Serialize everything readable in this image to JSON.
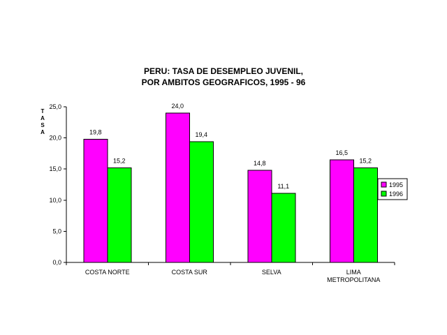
{
  "colors": {
    "series_1995": "#FF00FF",
    "series_1996": "#00FF00",
    "axis": "#000000",
    "background": "#FFFFFF"
  },
  "chart_data": {
    "type": "bar",
    "title_lines": [
      "PERU: TASA DE DESEMPLEO JUVENIL,",
      "POR AMBITOS GEOGRAFICOS, 1995 - 96"
    ],
    "ylabel": "TASA",
    "xlabel": "",
    "ylim": [
      0,
      25
    ],
    "yticks": [
      0,
      5,
      10,
      15,
      20,
      25
    ],
    "ytick_labels": [
      "0,0",
      "5,0",
      "10,0",
      "15,0",
      "20,0",
      "25,0"
    ],
    "grid": false,
    "legend_position": "right",
    "categories": [
      [
        "COSTA NORTE"
      ],
      [
        "COSTA SUR"
      ],
      [
        "SELVA"
      ],
      [
        "LIMA",
        "METROPOLITANA"
      ]
    ],
    "series": [
      {
        "name": "1995",
        "values": [
          19.8,
          24.0,
          14.8,
          16.5
        ],
        "labels": [
          "19,8",
          "24,0",
          "14,8",
          "16,5"
        ]
      },
      {
        "name": "1996",
        "values": [
          15.2,
          19.4,
          11.1,
          15.2
        ],
        "labels": [
          "15,2",
          "19,4",
          "11,1",
          "15,2"
        ]
      }
    ]
  }
}
